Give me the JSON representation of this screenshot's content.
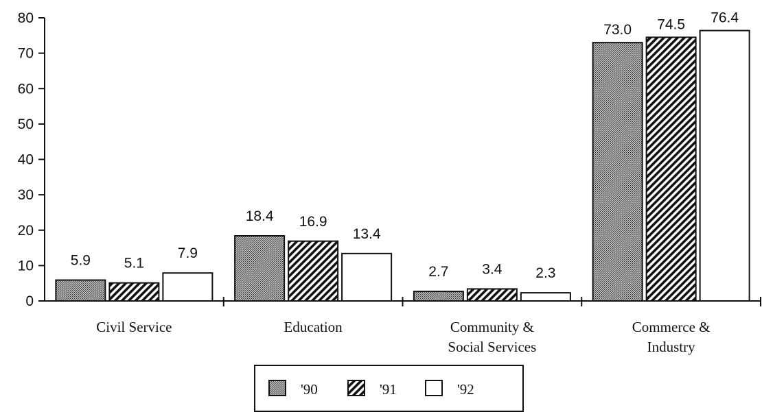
{
  "chart_data": {
    "type": "bar",
    "categories": [
      "Civil Service",
      "Education",
      "Community & Social Services",
      "Commerce & Industry"
    ],
    "category_lines": [
      [
        "Civil Service"
      ],
      [
        "Education"
      ],
      [
        "Community &",
        "Social Services"
      ],
      [
        "Commerce &",
        "Industry"
      ]
    ],
    "series": [
      {
        "name": "'90",
        "values": [
          5.9,
          18.4,
          2.7,
          73.0
        ],
        "labels": [
          "5.9",
          "18.4",
          "2.7",
          "73.0"
        ],
        "pattern": "dots"
      },
      {
        "name": "'91",
        "values": [
          5.1,
          16.9,
          3.4,
          74.5
        ],
        "labels": [
          "5.1",
          "16.9",
          "3.4",
          "74.5"
        ],
        "pattern": "hatch"
      },
      {
        "name": "'92",
        "values": [
          7.9,
          13.4,
          2.3,
          76.4
        ],
        "labels": [
          "7.9",
          "13.4",
          "2.3",
          "76.4"
        ],
        "pattern": "none"
      }
    ],
    "yticks": [
      0,
      10,
      20,
      30,
      40,
      50,
      60,
      70,
      80
    ],
    "ylim": [
      0,
      80
    ],
    "title": "",
    "xlabel": "",
    "ylabel": "",
    "grid": false,
    "legend_position": "bottom-center"
  }
}
